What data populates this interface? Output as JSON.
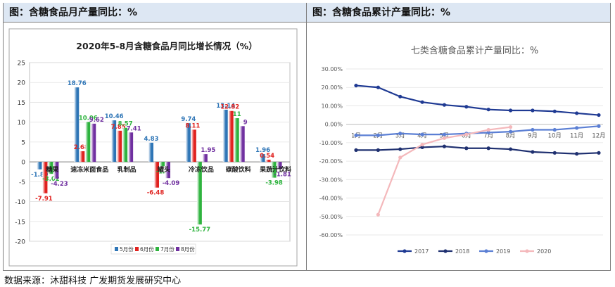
{
  "left_panel": {
    "header": "图：含糖食品月产量同比：%"
  },
  "right_panel": {
    "header": "图：含糖食品累计产量同比：%"
  },
  "source": "数据来源：沐甜科技  广发期货发展研究中心",
  "chart_data": [
    {
      "type": "bar",
      "title": "2020年5-8月含糖食品月同比增长情况（%）",
      "categories": [
        "糖果",
        "速冻米面食品",
        "乳制品",
        "罐头",
        "冷冻饮品",
        "碳酸饮料",
        "果蔬汁饮料"
      ],
      "ylim": [
        -20,
        25
      ],
      "yticks": [
        -20,
        -15,
        -10,
        -5,
        0,
        5,
        10,
        15,
        20,
        25
      ],
      "series": [
        {
          "name": "5月份",
          "color": "#2e75b6",
          "values": [
            -1.89,
            18.76,
            10.46,
            4.83,
            9.74,
            13.14,
            1.96
          ]
        },
        {
          "name": "6月份",
          "color": "#e0221f",
          "values": [
            -7.91,
            2.68,
            7.85,
            -6.48,
            8.11,
            12.82,
            0.54
          ]
        },
        {
          "name": "7月份",
          "color": "#2eb33e",
          "values": [
            -3.02,
            10.06,
            8.57,
            -1.1,
            -15.77,
            11,
            -3.98
          ]
        },
        {
          "name": "8月份",
          "color": "#7030a0",
          "values": [
            -4.23,
            9.62,
            7.41,
            -4.09,
            1.95,
            9,
            -1.81
          ]
        }
      ],
      "data_labels": [
        [
          "-1.89",
          "18.76",
          "10.46",
          "4.83",
          "9.74",
          "13.14",
          "1.96"
        ],
        [
          "-7.91",
          "2.68",
          "7.85",
          "-6.48",
          "8.11",
          "12.82",
          "0.54"
        ],
        [
          "-3.02",
          "10.06",
          "8.57",
          "-1.1",
          "-15.77",
          "11",
          "-3.98"
        ],
        [
          "-4.23",
          "9.62",
          "7.41",
          "-4.09",
          "1.95",
          "9",
          "-1.81"
        ]
      ],
      "grid": true,
      "legend": "bottom"
    },
    {
      "type": "line",
      "title": "七类含糖食品累计产量同比：%",
      "categories": [
        "1月",
        "2月",
        "3月",
        "4月",
        "5月",
        "6月",
        "7月",
        "8月",
        "9月",
        "10月",
        "11月",
        "12月"
      ],
      "ylim": [
        -60,
        30
      ],
      "yticks": [
        "30.00%",
        "20.00%",
        "10.00%",
        "0.00%",
        "-10.00%",
        "-20.00%",
        "-30.00%",
        "-40.00%",
        "-50.00%",
        "-60.00%"
      ],
      "ytick_values": [
        30,
        20,
        10,
        0,
        -10,
        -20,
        -30,
        -40,
        -50,
        -60
      ],
      "series": [
        {
          "name": "2017",
          "color": "#1f3a93",
          "values": [
            21,
            20,
            15,
            12,
            10.5,
            9.5,
            8,
            7.5,
            7.5,
            7,
            6,
            5
          ]
        },
        {
          "name": "2018",
          "color": "#1f3070",
          "values": [
            -14,
            -14,
            -13.5,
            -12.5,
            -12,
            -13,
            -13,
            -13.5,
            -15,
            -15.5,
            -16,
            -15.5
          ]
        },
        {
          "name": "2019",
          "color": "#5b7fd4",
          "values": [
            -6,
            -6,
            -5,
            -5.5,
            -5.5,
            -5,
            -4.5,
            -4,
            -3,
            -3,
            -2,
            -1
          ]
        },
        {
          "name": "2020",
          "color": "#f4b8bb",
          "values": [
            null,
            -49,
            -18,
            -11,
            -7.5,
            -5.5,
            -3,
            -1.5,
            null,
            null,
            null,
            null
          ]
        }
      ],
      "grid": true,
      "legend": "bottom"
    }
  ]
}
